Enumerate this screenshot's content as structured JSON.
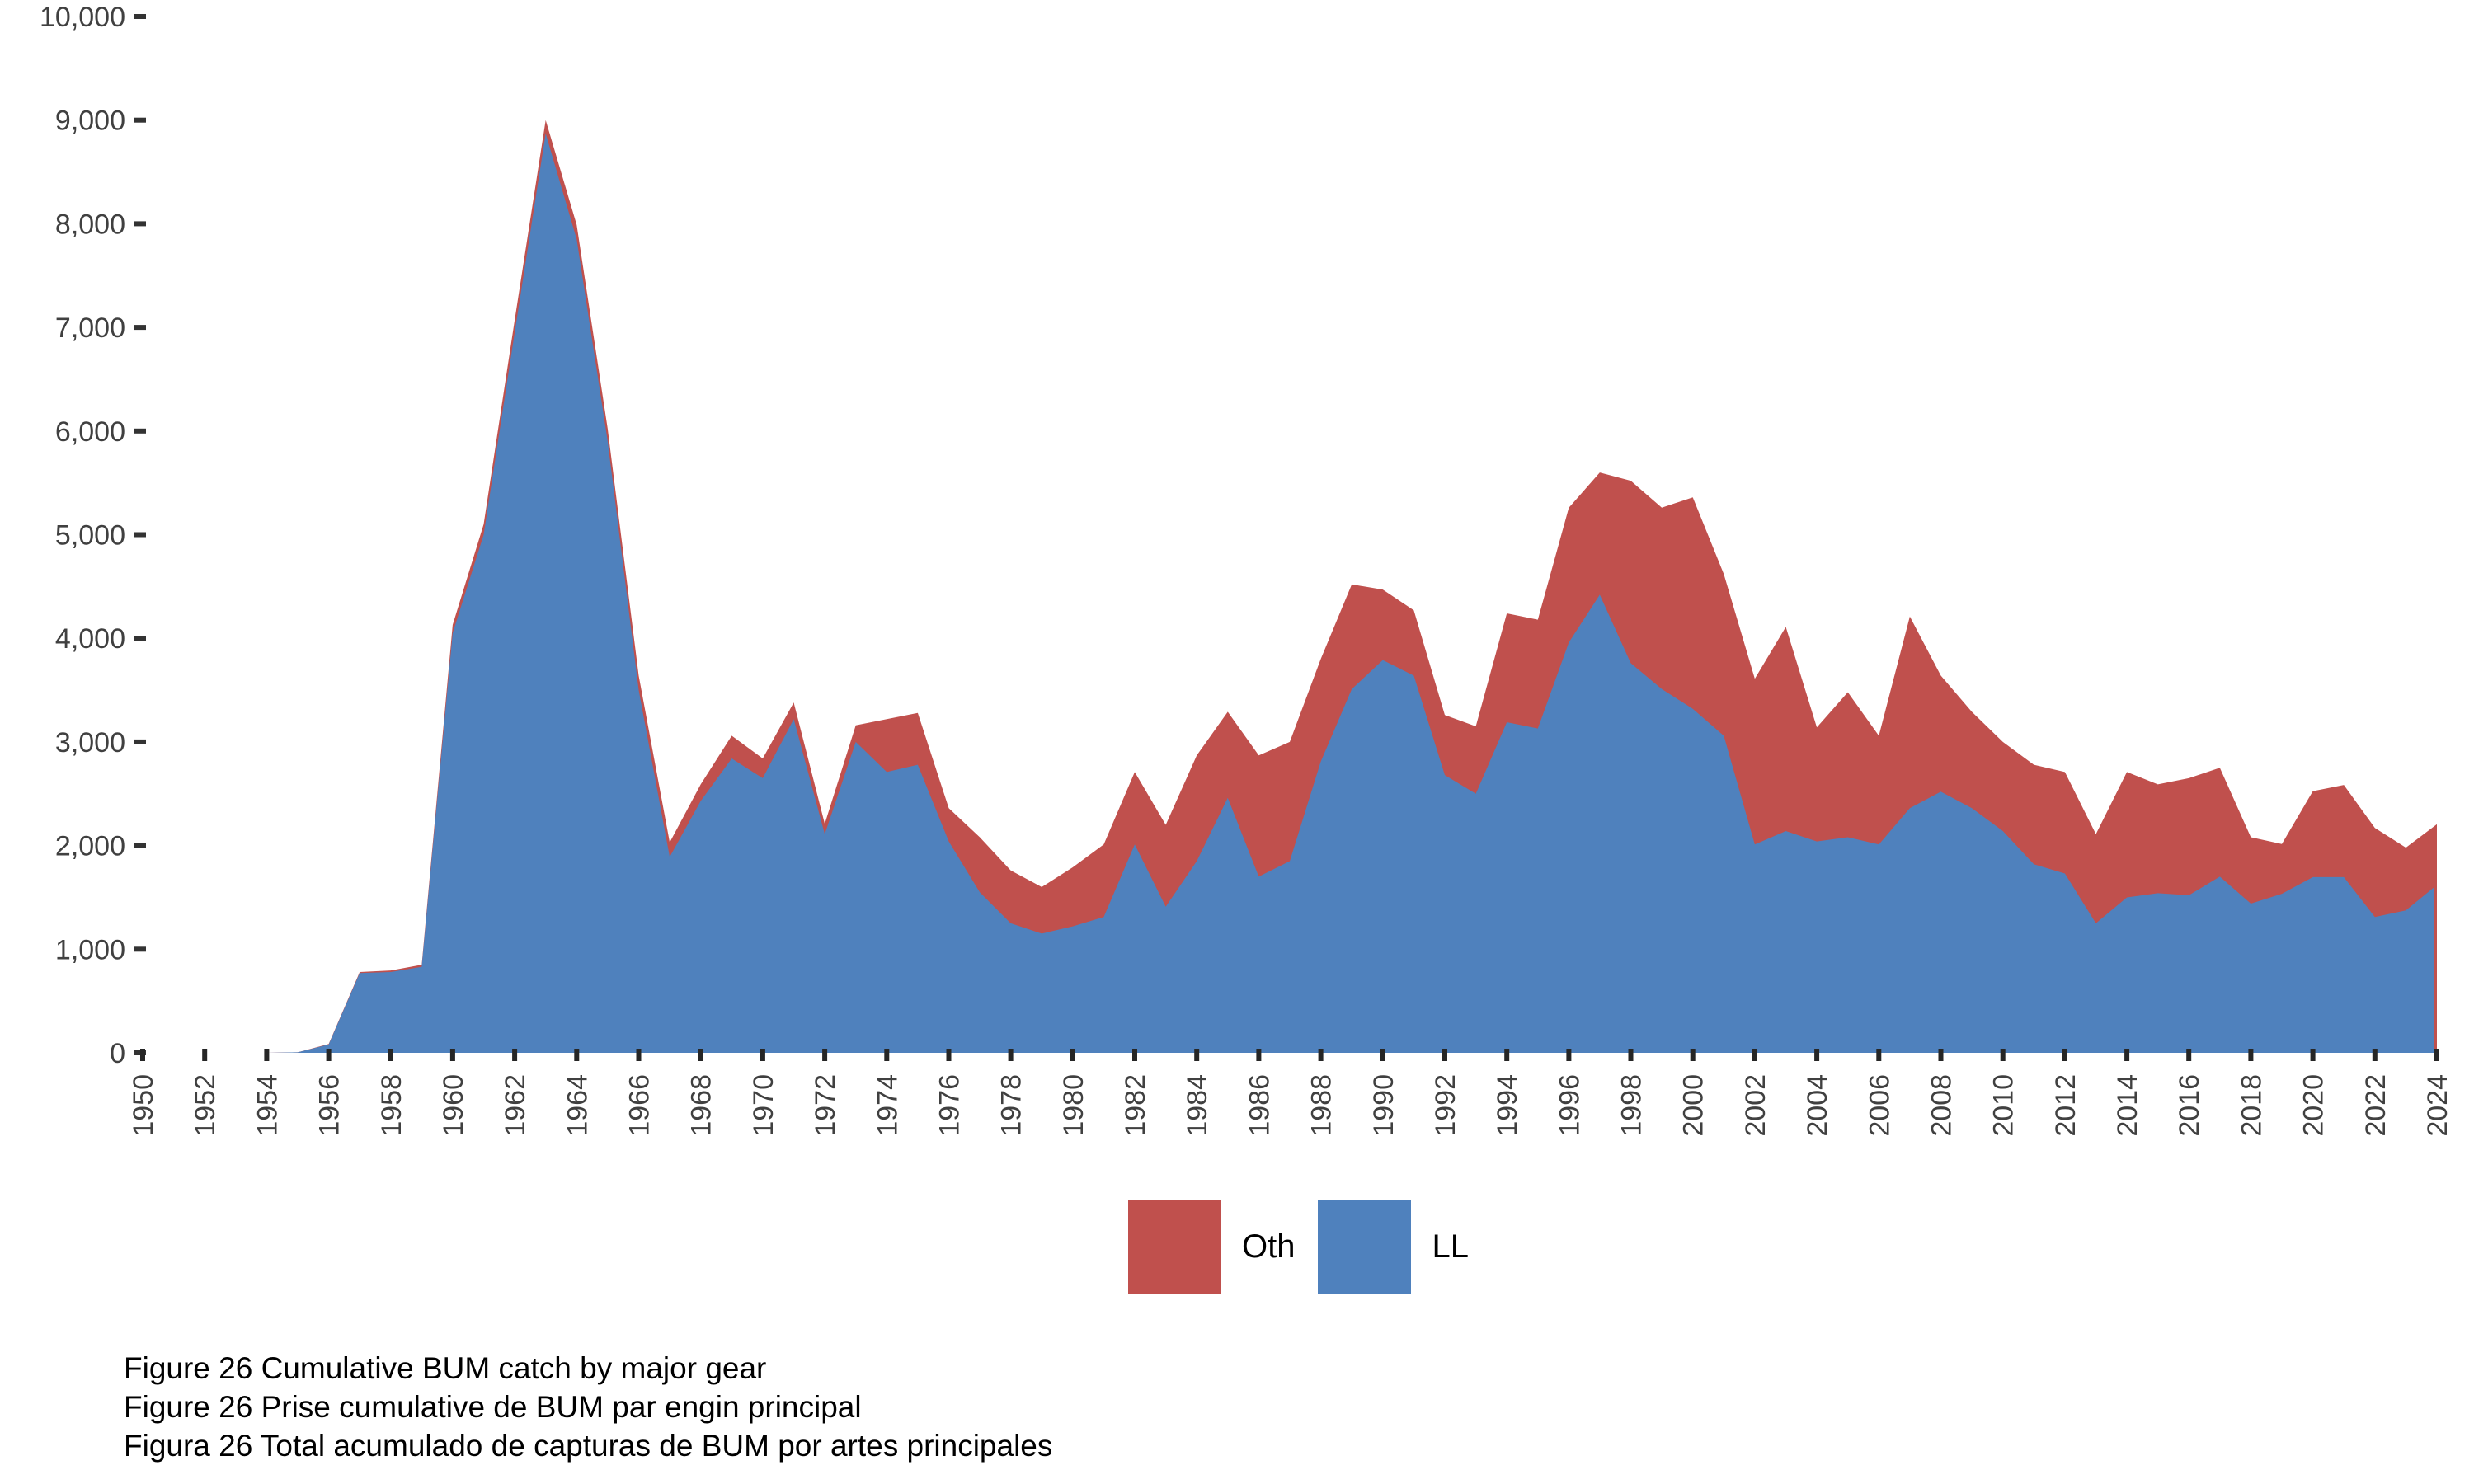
{
  "chart_data": {
    "type": "area",
    "stacked": true,
    "grid": false,
    "legend_position": "bottom-center",
    "xlim": [
      1950,
      2024
    ],
    "ylim": [
      0,
      10000
    ],
    "years": [
      1950,
      1951,
      1952,
      1953,
      1954,
      1955,
      1956,
      1957,
      1958,
      1959,
      1960,
      1961,
      1962,
      1963,
      1964,
      1965,
      1966,
      1967,
      1968,
      1969,
      1970,
      1971,
      1972,
      1973,
      1974,
      1975,
      1976,
      1977,
      1978,
      1979,
      1980,
      1981,
      1982,
      1983,
      1984,
      1985,
      1986,
      1987,
      1988,
      1989,
      1990,
      1991,
      1992,
      1993,
      1994,
      1995,
      1996,
      1997,
      1998,
      1999,
      2000,
      2001,
      2002,
      2003,
      2004,
      2005,
      2006,
      2007,
      2008,
      2009,
      2010,
      2011,
      2012,
      2013,
      2014,
      2015,
      2016,
      2017,
      2018,
      2019,
      2020,
      2021,
      2022,
      2023,
      2024
    ],
    "series": [
      {
        "name": "Oth",
        "color": "#c0504d",
        "values": [
          0,
          0,
          0,
          0,
          0,
          0,
          5,
          10,
          15,
          20,
          80,
          100,
          120,
          130,
          140,
          120,
          140,
          140,
          160,
          220,
          190,
          160,
          100,
          160,
          510,
          500,
          320,
          530,
          510,
          450,
          570,
          700,
          700,
          790,
          1020,
          830,
          1170,
          1150,
          990,
          1010,
          680,
          630,
          580,
          650,
          1050,
          1050,
          1300,
          1180,
          1760,
          1750,
          2040,
          1560,
          1600,
          1970,
          1100,
          1400,
          1050,
          1850,
          1120,
          930,
          860,
          960,
          980,
          860,
          1210,
          1050,
          1130,
          1050,
          640,
          480,
          830,
          890,
          860,
          605,
          605
        ]
      },
      {
        "name": "LL",
        "color": "#4f81bd",
        "values": [
          0,
          0,
          0,
          0,
          0,
          5,
          80,
          770,
          780,
          830,
          4050,
          5000,
          6950,
          8870,
          7850,
          5900,
          3500,
          1890,
          2430,
          2840,
          2650,
          3220,
          2110,
          3000,
          2710,
          2780,
          2040,
          1550,
          1250,
          1150,
          1220,
          1310,
          2010,
          1410,
          1850,
          2460,
          1700,
          1850,
          2810,
          3510,
          3790,
          3640,
          2680,
          2500,
          3190,
          3130,
          3960,
          4420,
          3760,
          3510,
          3320,
          3060,
          2010,
          2140,
          2040,
          2080,
          2010,
          2360,
          2520,
          2360,
          2140,
          1820,
          1730,
          1250,
          1500,
          1540,
          1520,
          1700,
          1440,
          1535,
          1695,
          1695,
          1310,
          1375,
          1600
        ]
      }
    ],
    "stack_order": [
      "LL",
      "Oth"
    ],
    "x_axis": {
      "tick_years": [
        1950,
        1952,
        1954,
        1956,
        1958,
        1960,
        1962,
        1964,
        1966,
        1968,
        1970,
        1972,
        1974,
        1976,
        1978,
        1980,
        1982,
        1984,
        1986,
        1988,
        1990,
        1992,
        1994,
        1996,
        1998,
        2000,
        2002,
        2004,
        2006,
        2008,
        2010,
        2012,
        2014,
        2016,
        2018,
        2020,
        2022,
        2024
      ]
    },
    "y_axis": {
      "tick_values": [
        0,
        1000,
        2000,
        3000,
        4000,
        5000,
        6000,
        7000,
        8000,
        9000,
        10000
      ],
      "tick_labels": [
        "0",
        "1,000",
        "2,000",
        "3,000",
        "4,000",
        "5,000",
        "6,000",
        "7,000",
        "8,000",
        "9,000",
        "10,000"
      ]
    }
  },
  "legend": {
    "items": [
      {
        "label": "Oth",
        "color": "#c0504d"
      },
      {
        "label": "LL",
        "color": "#4f81bd"
      }
    ]
  },
  "captions": {
    "lines": [
      "Figure 26 Cumulative BUM catch by major gear",
      "Figure 26 Prise cumulative de BUM par engin principal",
      "Figura 26 Total acumulado de capturas de BUM por artes principales"
    ]
  }
}
